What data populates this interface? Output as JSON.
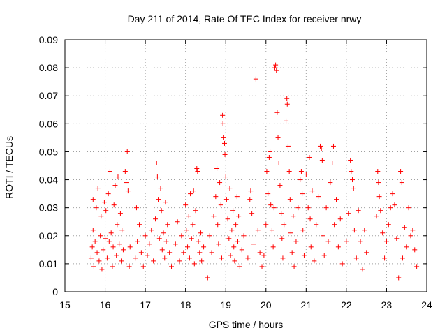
{
  "chart_data": {
    "type": "scatter",
    "title": "Day 211 of 2014, Rate Of TEC Index for receiver nrwy",
    "xlabel": "GPS time / hours",
    "ylabel": "ROTI / TECUs",
    "xlim": [
      15,
      24
    ],
    "ylim": [
      0,
      0.09
    ],
    "x_ticks": [
      "15",
      "16",
      "17",
      "18",
      "19",
      "20",
      "21",
      "22",
      "23",
      "24"
    ],
    "y_ticks": [
      "0",
      "0.01",
      "0.02",
      "0.03",
      "0.04",
      "0.05",
      "0.06",
      "0.07",
      "0.08",
      "0.09"
    ],
    "grid": true,
    "marker": "+",
    "colors": {
      "marker": "#ff0000",
      "grid": "#a0a0a0",
      "axis": "#000000",
      "background": "#ffffff"
    },
    "series": [
      {
        "name": "ROTI",
        "points": [
          [
            15.65,
            0.012
          ],
          [
            15.68,
            0.016
          ],
          [
            15.7,
            0.022
          ],
          [
            15.7,
            0.033
          ],
          [
            15.72,
            0.009
          ],
          [
            15.75,
            0.018
          ],
          [
            15.78,
            0.03
          ],
          [
            15.8,
            0.014
          ],
          [
            15.82,
            0.037
          ],
          [
            15.85,
            0.011
          ],
          [
            15.88,
            0.02
          ],
          [
            15.9,
            0.027
          ],
          [
            15.92,
            0.008
          ],
          [
            15.95,
            0.015
          ],
          [
            15.98,
            0.032
          ],
          [
            16.0,
            0.019
          ],
          [
            16.02,
            0.029
          ],
          [
            16.05,
            0.012
          ],
          [
            16.08,
            0.035
          ],
          [
            16.1,
            0.018
          ],
          [
            16.12,
            0.043
          ],
          [
            16.15,
            0.021
          ],
          [
            16.18,
            0.009
          ],
          [
            16.2,
            0.016
          ],
          [
            16.22,
            0.031
          ],
          [
            16.25,
            0.038
          ],
          [
            16.28,
            0.013
          ],
          [
            16.3,
            0.024
          ],
          [
            16.32,
            0.041
          ],
          [
            16.35,
            0.017
          ],
          [
            16.38,
            0.028
          ],
          [
            16.4,
            0.011
          ],
          [
            16.42,
            0.022
          ],
          [
            16.45,
            0.015
          ],
          [
            16.5,
            0.043
          ],
          [
            16.52,
            0.039
          ],
          [
            16.55,
            0.05
          ],
          [
            16.57,
            0.036
          ],
          [
            16.6,
            0.009
          ],
          [
            16.62,
            0.016
          ],
          [
            16.75,
            0.012
          ],
          [
            16.78,
            0.03
          ],
          [
            16.8,
            0.018
          ],
          [
            16.85,
            0.024
          ],
          [
            16.9,
            0.014
          ],
          [
            16.95,
            0.009
          ],
          [
            17.0,
            0.02
          ],
          [
            17.05,
            0.013
          ],
          [
            17.1,
            0.017
          ],
          [
            17.15,
            0.022
          ],
          [
            17.2,
            0.011
          ],
          [
            17.25,
            0.026
          ],
          [
            17.28,
            0.046
          ],
          [
            17.3,
            0.041
          ],
          [
            17.32,
            0.033
          ],
          [
            17.35,
            0.019
          ],
          [
            17.38,
            0.037
          ],
          [
            17.4,
            0.029
          ],
          [
            17.42,
            0.015
          ],
          [
            17.45,
            0.021
          ],
          [
            17.48,
            0.012
          ],
          [
            17.5,
            0.032
          ],
          [
            17.52,
            0.018
          ],
          [
            17.55,
            0.024
          ],
          [
            17.6,
            0.014
          ],
          [
            17.65,
            0.009
          ],
          [
            17.75,
            0.017
          ],
          [
            17.8,
            0.025
          ],
          [
            17.85,
            0.011
          ],
          [
            17.9,
            0.02
          ],
          [
            17.95,
            0.014
          ],
          [
            18.0,
            0.031
          ],
          [
            18.02,
            0.022
          ],
          [
            18.05,
            0.016
          ],
          [
            18.08,
            0.027
          ],
          [
            18.1,
            0.012
          ],
          [
            18.12,
            0.035
          ],
          [
            18.15,
            0.019
          ],
          [
            18.18,
            0.024
          ],
          [
            18.2,
            0.036
          ],
          [
            18.22,
            0.01
          ],
          [
            18.25,
            0.029
          ],
          [
            18.28,
            0.044
          ],
          [
            18.3,
            0.043
          ],
          [
            18.32,
            0.018
          ],
          [
            18.35,
            0.014
          ],
          [
            18.38,
            0.021
          ],
          [
            18.4,
            0.011
          ],
          [
            18.45,
            0.016
          ],
          [
            18.55,
            0.005
          ],
          [
            18.6,
            0.02
          ],
          [
            18.65,
            0.014
          ],
          [
            18.7,
            0.027
          ],
          [
            18.75,
            0.034
          ],
          [
            18.78,
            0.044
          ],
          [
            18.8,
            0.024
          ],
          [
            18.82,
            0.017
          ],
          [
            18.85,
            0.039
          ],
          [
            18.88,
            0.031
          ],
          [
            18.9,
            0.012
          ],
          [
            18.92,
            0.063
          ],
          [
            18.93,
            0.06
          ],
          [
            18.95,
            0.055
          ],
          [
            18.97,
            0.053
          ],
          [
            18.98,
            0.049
          ],
          [
            19.0,
            0.041
          ],
          [
            19.02,
            0.033
          ],
          [
            19.05,
            0.026
          ],
          [
            19.08,
            0.019
          ],
          [
            19.1,
            0.037
          ],
          [
            19.12,
            0.013
          ],
          [
            19.15,
            0.022
          ],
          [
            19.18,
            0.029
          ],
          [
            19.2,
            0.016
          ],
          [
            19.22,
            0.011
          ],
          [
            19.25,
            0.024
          ],
          [
            19.28,
            0.034
          ],
          [
            19.3,
            0.018
          ],
          [
            19.32,
            0.027
          ],
          [
            19.35,
            0.009
          ],
          [
            19.4,
            0.015
          ],
          [
            19.45,
            0.02
          ],
          [
            19.55,
            0.012
          ],
          [
            19.6,
            0.033
          ],
          [
            19.62,
            0.036
          ],
          [
            19.65,
            0.028
          ],
          [
            19.7,
            0.017
          ],
          [
            19.75,
            0.076
          ],
          [
            19.8,
            0.022
          ],
          [
            19.85,
            0.014
          ],
          [
            19.9,
            0.009
          ],
          [
            19.95,
            0.013
          ],
          [
            20.0,
            0.024
          ],
          [
            20.02,
            0.043
          ],
          [
            20.05,
            0.035
          ],
          [
            20.08,
            0.048
          ],
          [
            20.1,
            0.05
          ],
          [
            20.12,
            0.031
          ],
          [
            20.15,
            0.022
          ],
          [
            20.18,
            0.016
          ],
          [
            20.2,
            0.03
          ],
          [
            20.22,
            0.08
          ],
          [
            20.24,
            0.081
          ],
          [
            20.26,
            0.079
          ],
          [
            20.28,
            0.064
          ],
          [
            20.3,
            0.055
          ],
          [
            20.32,
            0.046
          ],
          [
            20.35,
            0.038
          ],
          [
            20.38,
            0.028
          ],
          [
            20.4,
            0.019
          ],
          [
            20.42,
            0.012
          ],
          [
            20.45,
            0.024
          ],
          [
            20.5,
            0.061
          ],
          [
            20.52,
            0.069
          ],
          [
            20.53,
            0.067
          ],
          [
            20.55,
            0.052
          ],
          [
            20.58,
            0.043
          ],
          [
            20.6,
            0.033
          ],
          [
            20.62,
            0.021
          ],
          [
            20.65,
            0.014
          ],
          [
            20.68,
            0.027
          ],
          [
            20.7,
            0.009
          ],
          [
            20.75,
            0.018
          ],
          [
            20.8,
            0.03
          ],
          [
            20.85,
            0.04
          ],
          [
            20.88,
            0.043
          ],
          [
            20.9,
            0.035
          ],
          [
            20.92,
            0.022
          ],
          [
            20.95,
            0.013
          ],
          [
            21.0,
            0.042
          ],
          [
            21.05,
            0.03
          ],
          [
            21.08,
            0.048
          ],
          [
            21.1,
            0.026
          ],
          [
            21.12,
            0.016
          ],
          [
            21.15,
            0.036
          ],
          [
            21.2,
            0.011
          ],
          [
            21.25,
            0.024
          ],
          [
            21.3,
            0.034
          ],
          [
            21.35,
            0.052
          ],
          [
            21.38,
            0.051
          ],
          [
            21.4,
            0.047
          ],
          [
            21.42,
            0.02
          ],
          [
            21.45,
            0.013
          ],
          [
            21.5,
            0.03
          ],
          [
            21.55,
            0.018
          ],
          [
            21.6,
            0.039
          ],
          [
            21.65,
            0.046
          ],
          [
            21.68,
            0.052
          ],
          [
            21.7,
            0.024
          ],
          [
            21.75,
            0.033
          ],
          [
            21.8,
            0.016
          ],
          [
            21.85,
            0.026
          ],
          [
            21.9,
            0.01
          ],
          [
            22.0,
            0.018
          ],
          [
            22.05,
            0.028
          ],
          [
            22.1,
            0.047
          ],
          [
            22.12,
            0.043
          ],
          [
            22.15,
            0.04
          ],
          [
            22.18,
            0.037
          ],
          [
            22.2,
            0.022
          ],
          [
            22.25,
            0.012
          ],
          [
            22.3,
            0.029
          ],
          [
            22.35,
            0.018
          ],
          [
            22.4,
            0.008
          ],
          [
            22.45,
            0.022
          ],
          [
            22.5,
            0.014
          ],
          [
            22.75,
            0.027
          ],
          [
            22.78,
            0.043
          ],
          [
            22.8,
            0.039
          ],
          [
            22.82,
            0.034
          ],
          [
            22.85,
            0.029
          ],
          [
            22.9,
            0.021
          ],
          [
            22.95,
            0.012
          ],
          [
            23.0,
            0.018
          ],
          [
            23.05,
            0.024
          ],
          [
            23.1,
            0.03
          ],
          [
            23.15,
            0.035
          ],
          [
            23.2,
            0.031
          ],
          [
            23.25,
            0.019
          ],
          [
            23.3,
            0.005
          ],
          [
            23.35,
            0.043
          ],
          [
            23.38,
            0.039
          ],
          [
            23.4,
            0.012
          ],
          [
            23.45,
            0.023
          ],
          [
            23.5,
            0.016
          ],
          [
            23.55,
            0.03
          ],
          [
            23.6,
            0.02
          ],
          [
            23.65,
            0.022
          ],
          [
            23.7,
            0.015
          ],
          [
            23.75,
            0.009
          ]
        ]
      }
    ]
  }
}
